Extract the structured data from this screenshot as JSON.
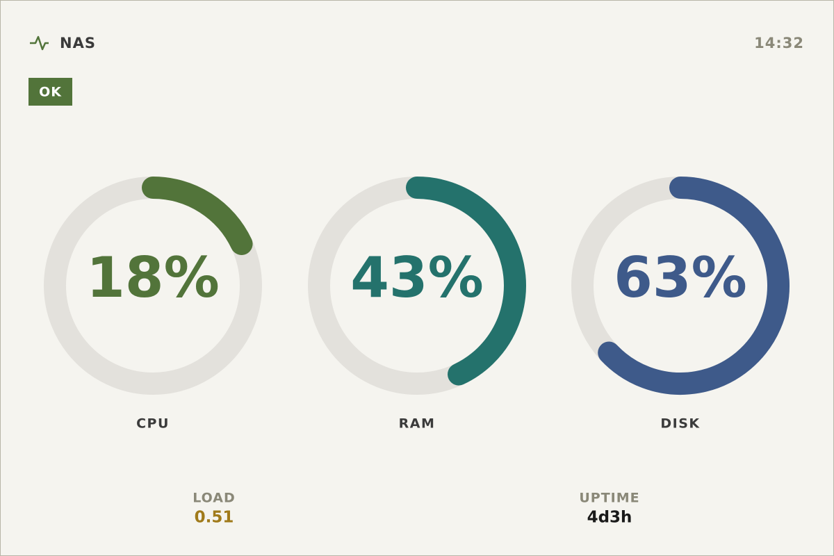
{
  "header": {
    "title": "NAS",
    "time": "14:32"
  },
  "status": {
    "label": "OK",
    "color": "#52743a"
  },
  "gauges": [
    {
      "label": "CPU",
      "value": 18,
      "value_label": "18%",
      "color": "#52743a"
    },
    {
      "label": "RAM",
      "value": 43,
      "value_label": "43%",
      "color": "#24726c"
    },
    {
      "label": "DISK",
      "value": 63,
      "value_label": "63%",
      "color": "#3e5a8a"
    }
  ],
  "stats": [
    {
      "label": "LOAD",
      "value": 0.51,
      "color": "#a07a1a"
    },
    {
      "label": "UPTIME",
      "value": "4d3h",
      "color": "#1a1a1a"
    }
  ]
}
